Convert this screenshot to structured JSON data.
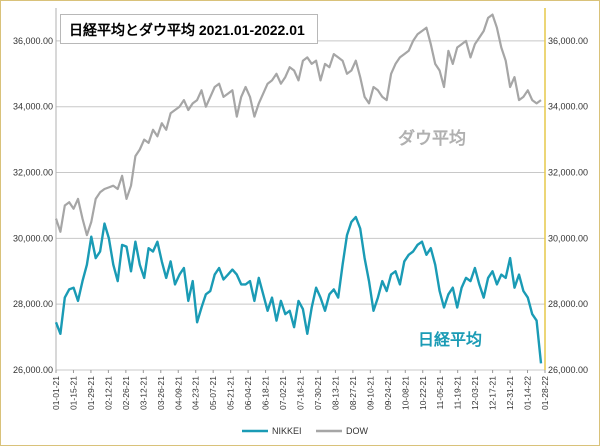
{
  "chart_data": {
    "type": "line",
    "title": "日経平均とダウ平均 2021.01-2022.01",
    "ylim": [
      26000,
      37000
    ],
    "yticks": [
      26000,
      28000,
      30000,
      32000,
      34000,
      36000
    ],
    "ytick_labels": [
      "26,000.00",
      "28,000.00",
      "30,000.00",
      "32,000.00",
      "34,000.00",
      "36,000.00"
    ],
    "grid": true,
    "legend": "bottom",
    "x_ticks": [
      "01-01-21",
      "01-15-21",
      "01-29-21",
      "02-12-21",
      "02-26-21",
      "03-12-21",
      "03-26-21",
      "04-09-21",
      "04-23-21",
      "05-07-21",
      "05-21-21",
      "06-04-21",
      "06-18-21",
      "07-02-21",
      "07-16-21",
      "07-30-21",
      "08-13-21",
      "08-27-21",
      "09-10-21",
      "09-24-21",
      "10-08-21",
      "10-22-21",
      "11-05-21",
      "11-19-21",
      "12-03-21",
      "12-17-21",
      "12-31-21",
      "01-14-22",
      "01-28-22"
    ],
    "series": [
      {
        "name": "NIKKEI",
        "color": "#1a9bb5",
        "annotation": "日経平均",
        "values": [
          27450,
          27100,
          28200,
          28450,
          28500,
          28100,
          28700,
          29200,
          30050,
          29400,
          29600,
          30450,
          30000,
          29200,
          28700,
          29800,
          29750,
          29000,
          29900,
          29200,
          28800,
          29700,
          29600,
          29900,
          29300,
          28800,
          29300,
          28600,
          28900,
          29100,
          28100,
          28700,
          27450,
          27900,
          28300,
          28400,
          28900,
          29100,
          28750,
          28900,
          29050,
          28900,
          28600,
          28600,
          28700,
          28100,
          28800,
          28300,
          27800,
          28200,
          27500,
          28100,
          27700,
          27800,
          27300,
          28100,
          27850,
          27100,
          27900,
          28500,
          28200,
          27800,
          28300,
          28450,
          28200,
          29200,
          30100,
          30500,
          30650,
          30300,
          29400,
          28700,
          27800,
          28200,
          28700,
          28400,
          28900,
          29000,
          28600,
          29300,
          29500,
          29600,
          29800,
          29900,
          29500,
          29700,
          29200,
          28400,
          27900,
          28300,
          28500,
          27900,
          28500,
          28800,
          28700,
          29100,
          28600,
          28200,
          28800,
          29000,
          28600,
          28900,
          28800,
          29400,
          28500,
          28900,
          28400,
          28200,
          27700,
          27500,
          26200
        ]
      },
      {
        "name": "DOW",
        "color": "#a6a6a6",
        "annotation": "ダウ平均",
        "values": [
          30600,
          30200,
          31000,
          31100,
          30900,
          31200,
          30600,
          30100,
          30500,
          31200,
          31400,
          31500,
          31550,
          31600,
          31500,
          31900,
          31200,
          31600,
          32500,
          32700,
          33000,
          32900,
          33300,
          33100,
          33500,
          33300,
          33800,
          33900,
          34000,
          34200,
          33900,
          34100,
          34200,
          34500,
          34000,
          34300,
          34600,
          34700,
          34300,
          34400,
          34500,
          33700,
          34300,
          34600,
          34300,
          33700,
          34100,
          34400,
          34700,
          34800,
          35000,
          34700,
          34900,
          35200,
          35100,
          34800,
          35400,
          35500,
          35300,
          35400,
          34800,
          35300,
          35200,
          35600,
          35500,
          35400,
          35000,
          35100,
          35400,
          34900,
          34300,
          34100,
          34600,
          34500,
          34300,
          34200,
          35000,
          35300,
          35500,
          35600,
          35700,
          36000,
          36200,
          36300,
          36400,
          35900,
          35300,
          35100,
          34600,
          35700,
          35300,
          35800,
          35900,
          36000,
          35500,
          35900,
          36100,
          36300,
          36700,
          36800,
          36400,
          35800,
          35400,
          34600,
          34900,
          34200,
          34300,
          34500,
          34200,
          34100,
          34200
        ]
      }
    ]
  }
}
